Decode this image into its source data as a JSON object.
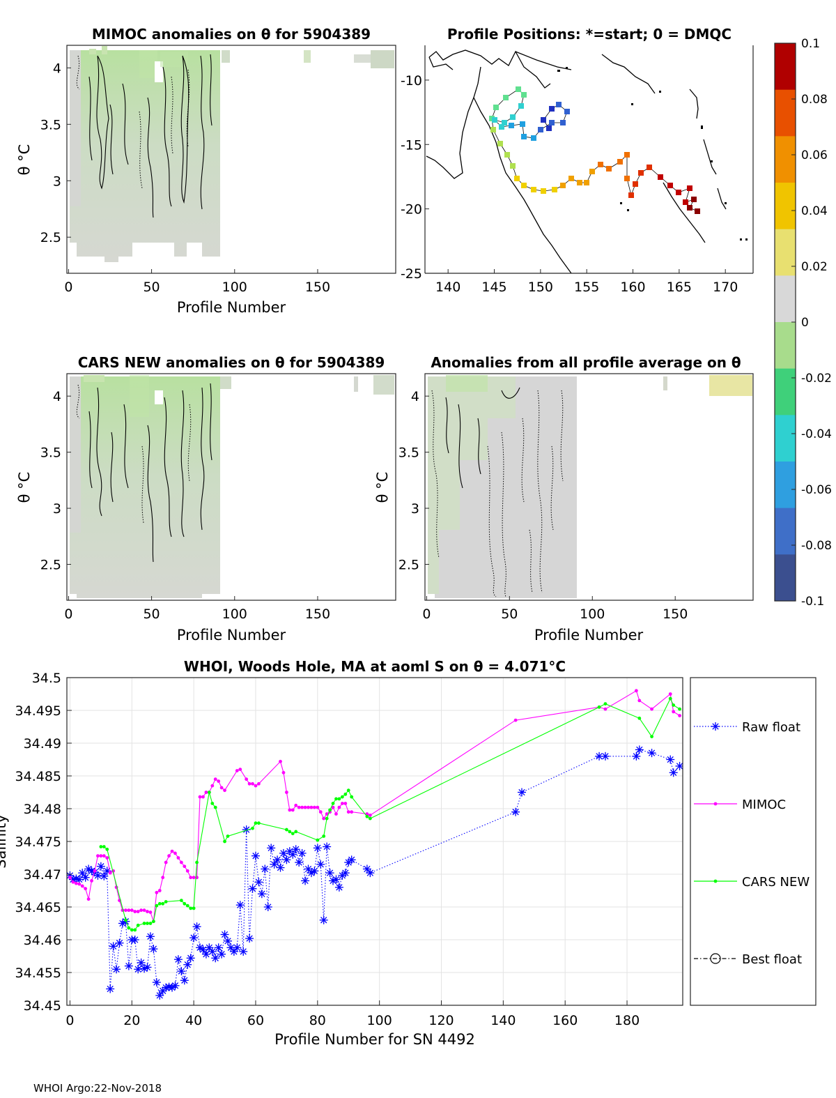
{
  "panels": {
    "mimoc_anom": {
      "title": "MIMOC anomalies on θ  for 5904389",
      "xlabel": "Profile Number",
      "ylabel": "θ °C",
      "xticks": [
        "0",
        "50",
        "100",
        "150"
      ],
      "yticks": [
        "2.5",
        "3",
        "3.5",
        "4"
      ]
    },
    "positions": {
      "title": "Profile Positions: *=start; 0 = DMQC",
      "xticks": [
        "140",
        "145",
        "150",
        "155",
        "160",
        "165",
        "170"
      ],
      "yticks": [
        "-10",
        "-15",
        "-20",
        "-25"
      ]
    },
    "cars_anom": {
      "title": "CARS NEW anomalies on θ for 5904389",
      "xlabel": "Profile Number",
      "ylabel": "θ °C",
      "xticks": [
        "0",
        "50",
        "100",
        "150"
      ],
      "yticks": [
        "2.5",
        "3",
        "3.5",
        "4"
      ]
    },
    "avg_anom": {
      "title": "Anomalies from all profile average on θ",
      "xlabel": "Profile Number",
      "ylabel": "θ °C",
      "xticks": [
        "0",
        "50",
        "100",
        "150"
      ],
      "yticks": [
        "2.5",
        "3",
        "3.5",
        "4"
      ]
    }
  },
  "colorbar": {
    "ticks": [
      "0.1",
      "0.08",
      "0.06",
      "0.04",
      "0.02",
      "0",
      "-0.02",
      "-0.04",
      "-0.06",
      "-0.08",
      "-0.1"
    ],
    "colors": [
      "#3b4f8f",
      "#3f6fc8",
      "#2f9fe0",
      "#2fd0d0",
      "#3fd07a",
      "#a8dc8c",
      "#d8d8d8",
      "#e8e070",
      "#f0c400",
      "#f09000",
      "#e85000",
      "#b00000"
    ]
  },
  "chart_data": {
    "type": "line",
    "title": "WHOI, Woods Hole, MA at aoml S on θ = 4.071°C",
    "xlabel": "Profile Number for SN 4492",
    "ylabel": "Salinity",
    "xlim": [
      -1,
      198
    ],
    "ylim": [
      34.45,
      34.5
    ],
    "xticks": [
      "0",
      "20",
      "40",
      "60",
      "80",
      "100",
      "120",
      "140",
      "160",
      "180"
    ],
    "yticks": [
      "34.45",
      "34.455",
      "34.46",
      "34.465",
      "34.47",
      "34.475",
      "34.48",
      "34.485",
      "34.49",
      "34.495",
      "34.5"
    ],
    "legend": [
      "Raw float",
      "MIMOC",
      "CARS NEW",
      "Best float"
    ],
    "series": [
      {
        "name": "Raw float",
        "color": "#0000ff",
        "marker": "asterisk",
        "x": [
          0,
          1,
          2,
          3,
          4,
          5,
          6,
          7,
          8,
          9,
          10,
          11,
          12,
          13,
          14,
          15,
          16,
          17,
          18,
          19,
          20,
          21,
          22,
          23,
          24,
          25,
          26,
          27,
          28,
          29,
          30,
          31,
          32,
          33,
          34,
          35,
          36,
          37,
          38,
          39,
          40,
          41,
          42,
          43,
          44,
          45,
          46,
          47,
          48,
          49,
          50,
          51,
          52,
          53,
          54,
          55,
          56,
          57,
          58,
          59,
          60,
          61,
          62,
          63,
          64,
          65,
          66,
          67,
          68,
          69,
          70,
          71,
          72,
          73,
          74,
          75,
          76,
          77,
          78,
          79,
          80,
          81,
          82,
          83,
          84,
          85,
          86,
          87,
          88,
          89,
          90,
          91,
          96,
          97,
          144,
          146,
          171,
          173,
          183,
          184,
          188,
          194,
          195,
          197
        ],
        "values": [
          34.4698,
          34.4692,
          34.4693,
          34.4692,
          34.4702,
          34.4695,
          34.4708,
          34.4705,
          34.4703,
          34.4698,
          34.4712,
          34.4697,
          34.4705,
          34.4525,
          34.459,
          34.4555,
          34.4595,
          34.4625,
          34.4628,
          34.456,
          34.46,
          34.46,
          34.4555,
          34.4565,
          34.4556,
          34.4558,
          34.4605,
          34.4586,
          34.4535,
          34.4515,
          34.4522,
          34.4527,
          34.4528,
          34.4527,
          34.453,
          34.457,
          34.4552,
          34.4538,
          34.4562,
          34.4572,
          34.4603,
          34.462,
          34.4588,
          34.4585,
          34.4578,
          34.4588,
          34.4582,
          34.4572,
          34.4588,
          34.4578,
          34.4608,
          34.4598,
          34.4588,
          34.4582,
          34.4588,
          34.4653,
          34.4582,
          34.4768,
          34.4602,
          34.4678,
          34.4728,
          34.4688,
          34.467,
          34.4708,
          34.465,
          34.474,
          34.4715,
          34.4722,
          34.471,
          34.4732,
          34.4722,
          34.4735,
          34.473,
          34.4738,
          34.4718,
          34.4732,
          34.469,
          34.4708,
          34.4702,
          34.4705,
          34.474,
          34.4715,
          34.463,
          34.4742,
          34.4702,
          34.469,
          34.4692,
          34.468,
          34.4698,
          34.4702,
          34.4718,
          34.4722,
          34.4708,
          34.4702,
          34.4795,
          34.4825,
          34.488,
          34.488,
          34.488,
          34.489,
          34.4885,
          34.4875,
          34.4855,
          34.4865
        ]
      },
      {
        "name": "MIMOC",
        "color": "#ff00ff",
        "marker": "dot",
        "x": [
          0,
          1,
          2,
          3,
          4,
          5,
          6,
          7,
          8,
          9,
          10,
          11,
          12,
          13,
          14,
          15,
          16,
          17,
          18,
          19,
          20,
          21,
          22,
          23,
          24,
          25,
          26,
          27,
          28,
          29,
          30,
          31,
          32,
          33,
          34,
          35,
          36,
          37,
          38,
          39,
          40,
          41,
          42,
          43,
          44,
          45,
          46,
          47,
          48,
          49,
          50,
          54,
          55,
          57,
          58,
          59,
          60,
          61,
          68,
          69,
          70,
          71,
          72,
          73,
          74,
          75,
          76,
          77,
          78,
          79,
          80,
          81,
          82,
          83,
          84,
          85,
          86,
          87,
          88,
          89,
          90,
          91,
          96,
          97,
          144,
          171,
          173,
          183,
          184,
          188,
          194,
          195,
          197
        ],
        "values": [
          34.4695,
          34.4688,
          34.4686,
          34.4685,
          34.4682,
          34.4678,
          34.4662,
          34.469,
          34.4705,
          34.4728,
          34.4728,
          34.4728,
          34.4725,
          34.4702,
          34.4705,
          34.468,
          34.466,
          34.4645,
          34.4645,
          34.4645,
          34.4645,
          34.4643,
          34.4643,
          34.4645,
          34.4645,
          34.4643,
          34.4642,
          34.4628,
          34.4672,
          34.4675,
          34.4695,
          34.4718,
          34.4728,
          34.4735,
          34.4732,
          34.4725,
          34.4718,
          34.4712,
          34.4705,
          34.4695,
          34.4695,
          34.4695,
          34.4818,
          34.4818,
          34.4825,
          34.4825,
          34.4835,
          34.4845,
          34.4842,
          34.4832,
          34.4828,
          34.4858,
          34.486,
          34.4845,
          34.4838,
          34.4838,
          34.4835,
          34.4838,
          34.4872,
          34.4855,
          34.4825,
          34.4798,
          34.4798,
          34.4805,
          34.4802,
          34.4802,
          34.4802,
          34.4802,
          34.4802,
          34.4802,
          34.4802,
          34.4795,
          34.4785,
          34.4792,
          34.4795,
          34.4802,
          34.4792,
          34.4802,
          34.4808,
          34.4808,
          34.4795,
          34.4795,
          34.4792,
          34.479,
          34.4935,
          34.4955,
          34.4952,
          34.498,
          34.4965,
          34.4952,
          34.4975,
          34.4948,
          34.4942
        ]
      },
      {
        "name": "CARS NEW",
        "color": "#00ff00",
        "marker": "dot",
        "x": [
          10,
          11,
          12,
          18,
          19,
          20,
          21,
          22,
          24,
          25,
          26,
          27,
          28,
          29,
          30,
          31,
          36,
          37,
          38,
          39,
          40,
          41,
          45,
          46,
          47,
          50,
          51,
          59,
          60,
          61,
          70,
          71,
          72,
          73,
          80,
          82,
          83,
          84,
          85,
          86,
          87,
          88,
          89,
          90,
          91,
          96,
          97,
          171,
          173,
          184,
          188,
          194,
          195,
          197
        ],
        "values": [
          34.4742,
          34.4742,
          34.4738,
          34.463,
          34.4618,
          34.4615,
          34.4615,
          34.4622,
          34.4625,
          34.4625,
          34.4625,
          34.4628,
          34.4652,
          34.4655,
          34.4655,
          34.4658,
          34.466,
          34.4655,
          34.4652,
          34.4648,
          34.4648,
          34.4718,
          34.4825,
          34.4808,
          34.4802,
          34.475,
          34.4758,
          34.477,
          34.4778,
          34.4778,
          34.4768,
          34.4765,
          34.4762,
          34.4765,
          34.4752,
          34.4758,
          34.4785,
          34.4798,
          34.4808,
          34.4815,
          34.4815,
          34.4818,
          34.4822,
          34.4828,
          34.4818,
          34.4788,
          34.4785,
          34.4955,
          34.496,
          34.4938,
          34.491,
          34.4968,
          34.4958,
          34.4952
        ]
      },
      {
        "name": "Best float",
        "color": "#000000",
        "marker": "circle",
        "x": [],
        "values": []
      }
    ]
  },
  "footer": "WHOI Argo:22-Nov-2018"
}
